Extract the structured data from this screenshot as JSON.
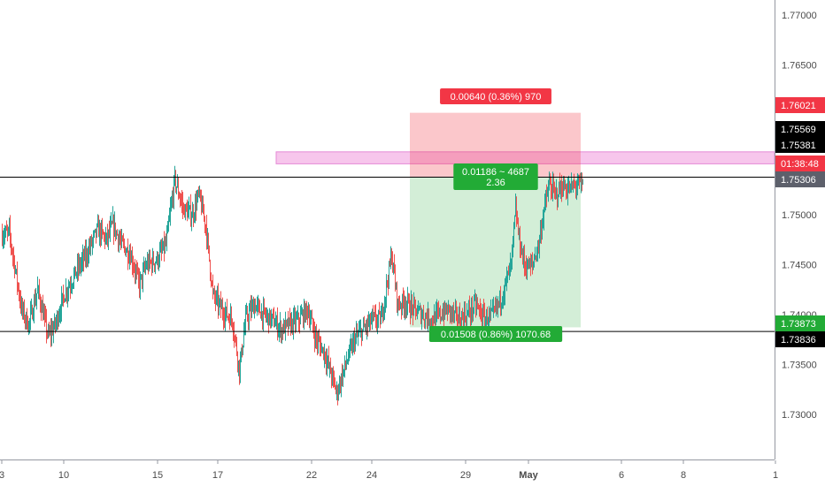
{
  "chart_data": {
    "type": "candlestick",
    "price_axis": {
      "ylim": [
        1.7255,
        1.7715
      ],
      "ticks": [
        "1.77000",
        "1.76500",
        "1.75000",
        "1.74500",
        "1.74000",
        "1.73500",
        "1.73000"
      ],
      "tick_values": [
        1.77,
        1.765,
        1.75,
        1.745,
        1.74,
        1.735,
        1.73
      ]
    },
    "time_axis": {
      "ticks": [
        "3",
        "10",
        "15",
        "17",
        "22",
        "24",
        "29",
        "May",
        "6",
        "8",
        "1"
      ],
      "tick_index": [
        0,
        70,
        176,
        244,
        350,
        418,
        524,
        595,
        700,
        770,
        874
      ]
    },
    "price_tags": [
      {
        "text": "1.76021",
        "value": 1.76021,
        "color": "#f23645",
        "text_color": "#ffffff"
      },
      {
        "text": "1.75569",
        "value": 1.75569,
        "color": "#000000",
        "text_color": "#ffffff"
      },
      {
        "text": "1.75381",
        "value": 1.75381,
        "color": "#000000",
        "text_color": "#ffffff"
      },
      {
        "text": "01:38:48",
        "value": 1.7522,
        "color": "#f23645",
        "text_color": "#ffffff"
      },
      {
        "text": "1.75306",
        "value": 1.75306,
        "color": "#5d606b",
        "text_color": "#ffffff"
      },
      {
        "text": "1.73873",
        "value": 1.73873,
        "color": "#22ab36",
        "text_color": "#ffffff"
      },
      {
        "text": "1.73836",
        "value": 1.73836,
        "color": "#000000",
        "text_color": "#ffffff"
      }
    ],
    "horizontal_lines": [
      1.75381,
      1.73836
    ],
    "zone": {
      "top": 1.7563,
      "bottom": 1.7551
    },
    "position": {
      "entry": 1.75381,
      "target": 1.76021,
      "stop": 1.73873,
      "target_label": "0.00640 (0.36%) 970",
      "stop_label": "0.01508 (0.86%) 1070.68",
      "info_label_1": "0.01186 ~ 4687",
      "info_label_2": "2.36"
    },
    "anchors": [
      [
        0,
        1.748
      ],
      [
        8,
        1.7482
      ],
      [
        14,
        1.745
      ],
      [
        22,
        1.7405
      ],
      [
        30,
        1.739
      ],
      [
        40,
        1.7425
      ],
      [
        52,
        1.7378
      ],
      [
        60,
        1.739
      ],
      [
        70,
        1.742
      ],
      [
        85,
        1.7445
      ],
      [
        95,
        1.746
      ],
      [
        108,
        1.7485
      ],
      [
        118,
        1.7475
      ],
      [
        125,
        1.749
      ],
      [
        135,
        1.747
      ],
      [
        145,
        1.746
      ],
      [
        155,
        1.743
      ],
      [
        163,
        1.745
      ],
      [
        175,
        1.7455
      ],
      [
        185,
        1.747
      ],
      [
        195,
        1.7535
      ],
      [
        205,
        1.7505
      ],
      [
        215,
        1.75
      ],
      [
        222,
        1.752
      ],
      [
        230,
        1.749
      ],
      [
        238,
        1.742
      ],
      [
        248,
        1.7405
      ],
      [
        260,
        1.7395
      ],
      [
        268,
        1.7345
      ],
      [
        275,
        1.7395
      ],
      [
        285,
        1.741
      ],
      [
        295,
        1.74
      ],
      [
        305,
        1.7395
      ],
      [
        315,
        1.7385
      ],
      [
        325,
        1.739
      ],
      [
        335,
        1.7395
      ],
      [
        345,
        1.7405
      ],
      [
        355,
        1.7375
      ],
      [
        365,
        1.736
      ],
      [
        378,
        1.7322
      ],
      [
        388,
        1.735
      ],
      [
        398,
        1.7375
      ],
      [
        408,
        1.7385
      ],
      [
        418,
        1.7395
      ],
      [
        428,
        1.7395
      ],
      [
        440,
        1.746
      ],
      [
        447,
        1.741
      ],
      [
        455,
        1.7413
      ],
      [
        465,
        1.7405
      ],
      [
        475,
        1.74
      ],
      [
        485,
        1.7395
      ],
      [
        495,
        1.74
      ],
      [
        505,
        1.7405
      ],
      [
        515,
        1.7395
      ],
      [
        525,
        1.74
      ],
      [
        535,
        1.741
      ],
      [
        545,
        1.7395
      ],
      [
        555,
        1.74
      ],
      [
        565,
        1.742
      ],
      [
        575,
        1.745
      ],
      [
        580,
        1.7505
      ],
      [
        584,
        1.7475
      ],
      [
        590,
        1.745
      ],
      [
        598,
        1.7448
      ],
      [
        606,
        1.747
      ],
      [
        612,
        1.7505
      ],
      [
        618,
        1.753
      ],
      [
        625,
        1.752
      ],
      [
        632,
        1.7528
      ],
      [
        640,
        1.7525
      ],
      [
        648,
        1.753
      ],
      [
        656,
        1.753
      ]
    ]
  }
}
